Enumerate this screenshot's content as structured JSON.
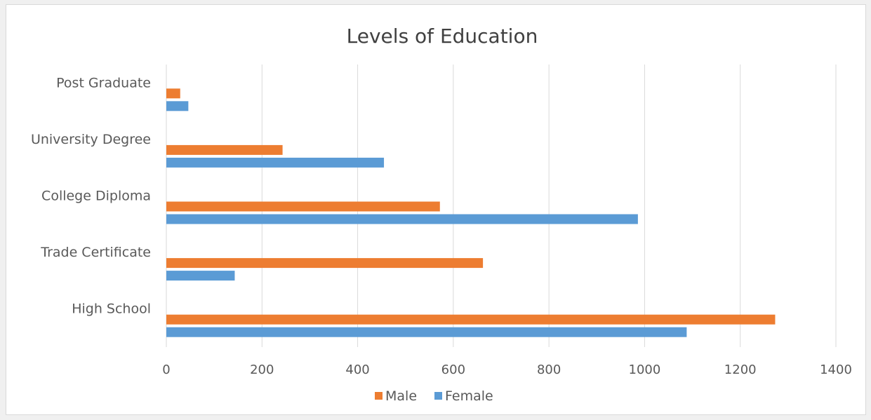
{
  "chart_data": {
    "type": "bar",
    "orientation": "horizontal",
    "title": "Levels of Education",
    "categories": [
      "High School",
      "Trade Certificate",
      "College Diploma",
      "University Degree",
      "Post Graduate"
    ],
    "series": [
      {
        "name": "Male",
        "color": "#ed7d31",
        "values": [
          1273,
          662,
          572,
          243,
          29
        ]
      },
      {
        "name": "Female",
        "color": "#5b9bd5",
        "values": [
          1088,
          143,
          986,
          455,
          46
        ]
      }
    ],
    "xlim": [
      0,
      1400
    ],
    "xticks": [
      "0",
      "200",
      "400",
      "600",
      "800",
      "1000",
      "1200",
      "1400"
    ],
    "grid": true,
    "legend": "bottom"
  }
}
